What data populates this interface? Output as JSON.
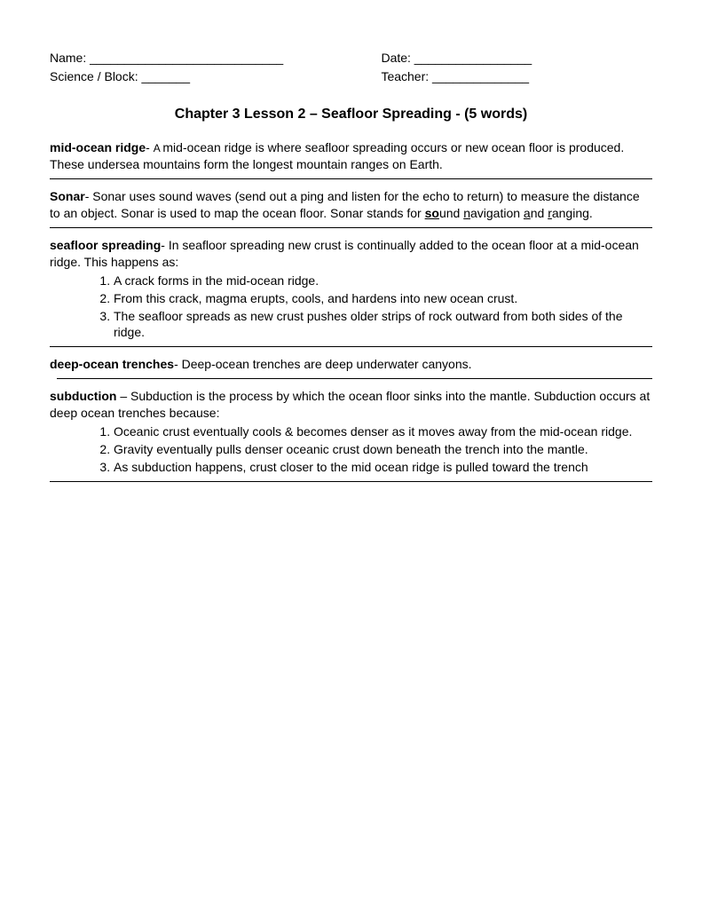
{
  "header": {
    "name_label": "Name: ____________________________",
    "date_label": "Date: _________________",
    "science_block_label": "Science / Block: _______",
    "teacher_label": "Teacher: ______________"
  },
  "title": "Chapter 3 Lesson 2 – Seafloor Spreading - (5 words)",
  "entries": {
    "mid_ocean_ridge": {
      "term": "mid-ocean ridge",
      "sep": "- ",
      "a": "A ",
      "def": "mid-ocean ridge is where seafloor spreading occurs or new ocean floor is produced. These undersea mountains form the longest mountain ranges on Earth."
    },
    "sonar": {
      "term": "Sonar",
      "sep": "- ",
      "def_part1": "Sonar uses sound waves (send out a ping and listen for the echo to return) to measure the distance to an object. Sonar is used to map the ocean floor. Sonar stands for ",
      "u1": "so",
      "def_part2": "und ",
      "u2": "n",
      "def_part3": "avigation ",
      "u3": "a",
      "def_part4": "nd ",
      "u4": "r",
      "def_part5": "anging."
    },
    "seafloor_spreading": {
      "term": "seafloor spreading",
      "sep": "- ",
      "def": "In seafloor spreading new crust is continually added to the ocean floor at a mid-ocean ridge.  This happens as:",
      "items": [
        "A crack forms in the mid-ocean ridge.",
        "From this crack, magma erupts, cools, and hardens into new ocean crust.",
        "The seafloor spreads as new crust pushes older strips of rock outward from both sides of the ridge."
      ]
    },
    "deep_ocean_trenches": {
      "term": "deep-ocean trenches",
      "sep": "- ",
      "def": "Deep-ocean trenches are deep underwater canyons."
    },
    "subduction": {
      "term": "subduction",
      "sep": " – ",
      "def": "Subduction is the process by which the ocean floor sinks into the mantle. Subduction occurs at deep ocean trenches because:",
      "items": [
        "Oceanic crust eventually cools & becomes denser as it moves away from the mid-ocean ridge.",
        "Gravity eventually pulls denser oceanic crust down beneath the trench into the mantle.",
        "As subduction happens, crust closer to the mid ocean ridge is pulled toward the trench"
      ]
    }
  }
}
